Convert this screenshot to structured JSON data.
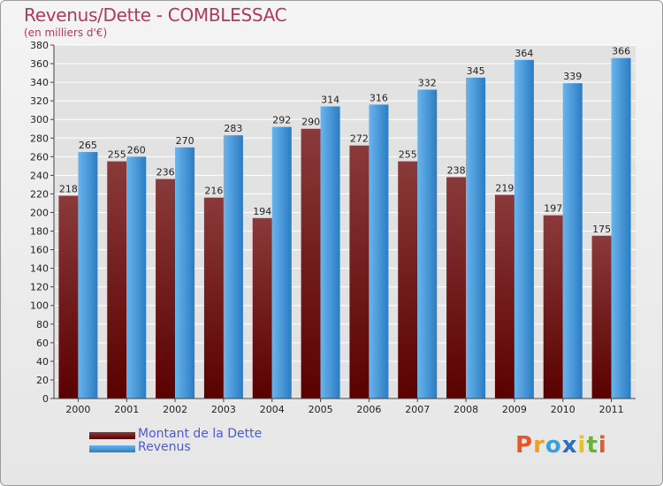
{
  "header": {
    "title": "Revenus/Dette - COMBLESSAC",
    "subtitle": "(en milliers d'€)"
  },
  "logo": {
    "text": "Proxiti",
    "letters": [
      {
        "ch": "P",
        "color": "#e05a2a"
      },
      {
        "ch": "r",
        "color": "#f0a020"
      },
      {
        "ch": "o",
        "color": "#3aa0d8"
      },
      {
        "ch": "x",
        "color": "#2a6fc0"
      },
      {
        "ch": "i",
        "color": "#e8c020"
      },
      {
        "ch": "t",
        "color": "#6ab03a"
      },
      {
        "ch": "i",
        "color": "#e05a2a"
      }
    ]
  },
  "colors": {
    "dette_top": "#8a3a3a",
    "dette_bottom": "#5a0000",
    "revenus_top": "#6ab4ec",
    "revenus_bottom": "#2a7cc4",
    "grid": "#ffffff",
    "axis_text": "#222222",
    "title": "#b03a5b",
    "legend_text": "#4a5ad8"
  },
  "chart_data": {
    "type": "bar",
    "title": "Revenus/Dette - COMBLESSAC",
    "subtitle": "(en milliers d'€)",
    "categories": [
      "2000",
      "2001",
      "2002",
      "2003",
      "2004",
      "2005",
      "2006",
      "2007",
      "2008",
      "2009",
      "2010",
      "2011"
    ],
    "series": [
      {
        "name": "Montant de la Dette",
        "values": [
          218,
          255,
          236,
          216,
          194,
          290,
          272,
          255,
          238,
          219,
          197,
          175
        ]
      },
      {
        "name": "Revenus",
        "values": [
          265,
          260,
          270,
          283,
          292,
          314,
          316,
          332,
          345,
          364,
          339,
          366
        ]
      }
    ],
    "ylim": [
      0,
      380
    ],
    "yticks": [
      0,
      20,
      40,
      60,
      80,
      100,
      120,
      140,
      160,
      180,
      200,
      220,
      240,
      260,
      280,
      300,
      320,
      340,
      360,
      380
    ],
    "grid": true,
    "legend_position": "bottom-left"
  }
}
